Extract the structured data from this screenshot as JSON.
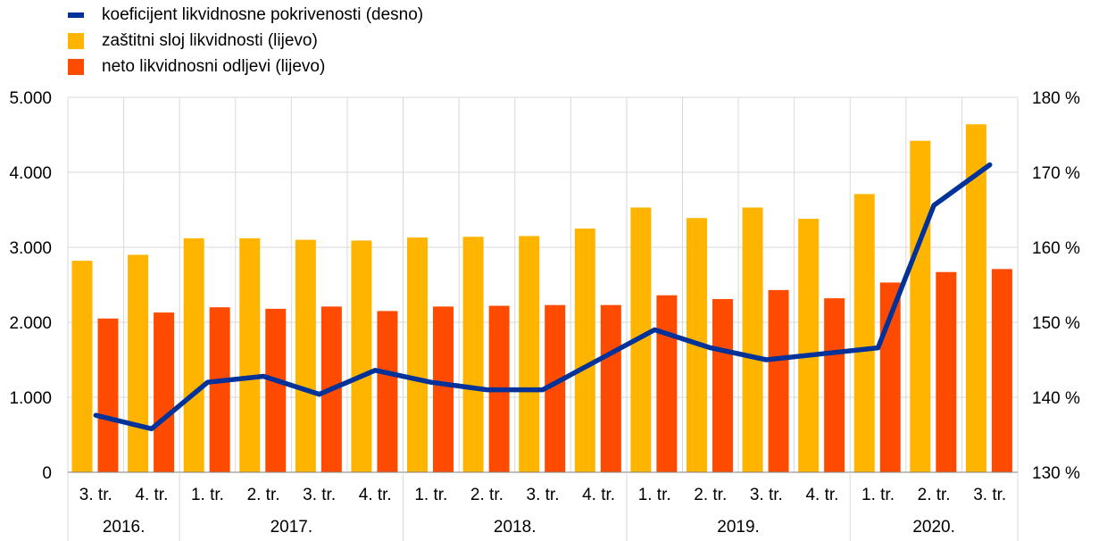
{
  "legend": [
    {
      "label": "koeficijent likvidnosne pokrivenosti (desno)",
      "color": "#003299",
      "kind": "line"
    },
    {
      "label": "zaštitni sloj likvidnosti (lijevo)",
      "color": "#FFB400",
      "kind": "box"
    },
    {
      "label": "neto likvidnosni odljevi (lijevo)",
      "color": "#FF4B00",
      "kind": "box"
    }
  ],
  "chart_data": {
    "type": "bar",
    "quarters": [
      "3. tr.",
      "4. tr.",
      "1. tr.",
      "2. tr.",
      "3. tr.",
      "4. tr.",
      "1. tr.",
      "2. tr.",
      "3. tr.",
      "4. tr.",
      "1. tr.",
      "2. tr.",
      "3. tr.",
      "4. tr.",
      "1. tr.",
      "2. tr.",
      "3. tr."
    ],
    "years": [
      {
        "label": "2016.",
        "count": 2
      },
      {
        "label": "2017.",
        "count": 4
      },
      {
        "label": "2018.",
        "count": 4
      },
      {
        "label": "2019.",
        "count": 4
      },
      {
        "label": "2020.",
        "count": 3
      }
    ],
    "series": [
      {
        "name": "zaštitni sloj likvidnosti (lijevo)",
        "axis": "left",
        "kind": "bar",
        "color": "#FFB400",
        "values": [
          2820,
          2900,
          3120,
          3120,
          3100,
          3090,
          3130,
          3140,
          3150,
          3250,
          3530,
          3390,
          3530,
          3380,
          3710,
          4420,
          4640
        ]
      },
      {
        "name": "neto likvidnosni odljevi (lijevo)",
        "axis": "left",
        "kind": "bar",
        "color": "#FF4B00",
        "values": [
          2050,
          2130,
          2200,
          2180,
          2210,
          2150,
          2210,
          2220,
          2230,
          2230,
          2360,
          2310,
          2430,
          2320,
          2530,
          2670,
          2710
        ]
      },
      {
        "name": "koeficijent likvidnosne pokrivenosti (desno)",
        "axis": "right",
        "kind": "line",
        "color": "#003299",
        "values": [
          137.6,
          135.8,
          142.0,
          142.8,
          140.4,
          143.6,
          142.0,
          141.0,
          141.0,
          145.0,
          149.0,
          146.6,
          145.0,
          145.8,
          146.6,
          165.6,
          171.0
        ]
      }
    ],
    "left_axis": {
      "min": 0,
      "max": 5000,
      "ticks": [
        "0",
        "1.000",
        "2.000",
        "3.000",
        "4.000",
        "5.000"
      ]
    },
    "right_axis": {
      "min": 130,
      "max": 180,
      "ticks": [
        "130 %",
        "140 %",
        "150 %",
        "160 %",
        "170 %",
        "180 %"
      ]
    },
    "grid": true,
    "legend_position": "top-left"
  }
}
